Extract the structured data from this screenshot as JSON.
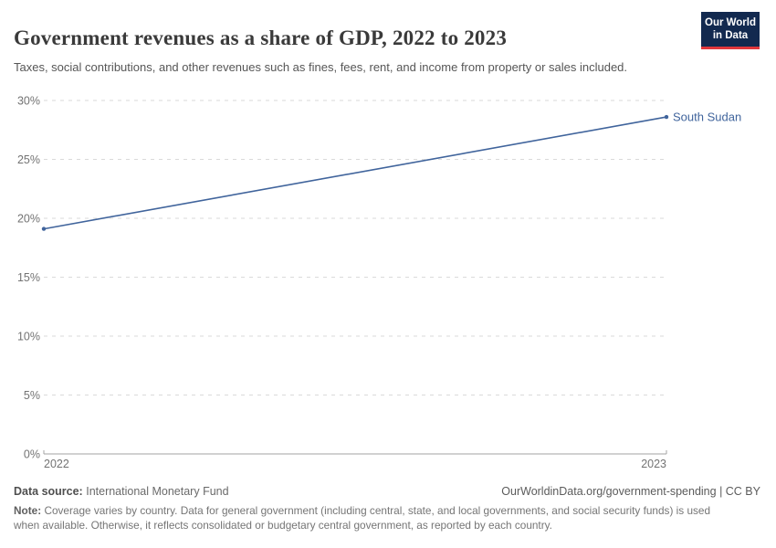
{
  "header": {
    "title": "Government revenues as a share of GDP, 2022 to 2023",
    "subtitle": "Taxes, social contributions, and other revenues such as fines, fees, rent, and income from property or sales included.",
    "logo": {
      "line1": "Our World",
      "line2": "in Data",
      "bg_color": "#12294f",
      "accent_color": "#e0373c"
    }
  },
  "chart_data": {
    "type": "line",
    "title": "Government revenues as a share of GDP, 2022 to 2023",
    "x": [
      2022,
      2023
    ],
    "series": [
      {
        "name": "South Sudan",
        "color": "#40649c",
        "values": [
          19.1,
          28.6
        ]
      }
    ],
    "x_tick_labels": [
      "2022",
      "2023"
    ],
    "y_ticks": [
      0,
      5,
      10,
      15,
      20,
      25,
      30
    ],
    "y_tick_suffix": "%",
    "ylim": [
      0,
      30
    ],
    "xlim": [
      2022,
      2023
    ],
    "grid": "horizontal-dashed",
    "legend_position": "label-at-line-end"
  },
  "footer": {
    "datasource_label": "Data source:",
    "datasource_value": "International Monetary Fund",
    "attribution": "OurWorldinData.org/government-spending | CC BY",
    "note_label": "Note:",
    "note_text": "Coverage varies by country. Data for general government (including central, state, and local governments, and social security funds) is used when available. Otherwise, it reflects consolidated or budgetary central government, as reported by each country."
  },
  "colors": {
    "line": "#40649c",
    "grid": "#dadada",
    "axis": "#a3a3a3",
    "tick_text": "#737373",
    "title_text": "#3a3a3a",
    "subtitle_text": "#565656"
  }
}
